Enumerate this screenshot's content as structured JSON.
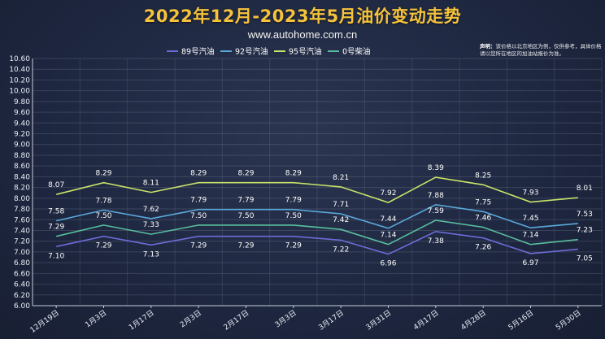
{
  "header": {
    "title": "2022年12月-2023年5月油价变动走势",
    "website": "www.autohome.com.cn"
  },
  "disclaimer": {
    "label": "声明：",
    "text": "该价格以北京地区为例，仅供参考，具体价格请以您所在地区的加油站报价为准。"
  },
  "colors": {
    "s89": "#6c6cd6",
    "s92": "#5aa9dc",
    "s95": "#c8e36a",
    "s0": "#58bf9e"
  },
  "chart_data": {
    "type": "line",
    "categories": [
      "12月19日",
      "1月3日",
      "1月17日",
      "2月3日",
      "2月17日",
      "3月3日",
      "3月17日",
      "3月31日",
      "4月17日",
      "4月28日",
      "5月16日",
      "5月30日"
    ],
    "ylim": [
      6.0,
      10.6
    ],
    "ystep": 0.2,
    "grid": true,
    "legend_position": "top",
    "series": [
      {
        "key": "s89",
        "name": "89号汽油",
        "values": [
          7.1,
          7.29,
          7.13,
          7.29,
          7.29,
          7.29,
          7.22,
          6.96,
          7.38,
          7.26,
          6.97,
          7.05
        ]
      },
      {
        "key": "s92",
        "name": "92号汽油",
        "values": [
          7.58,
          7.78,
          7.62,
          7.79,
          7.79,
          7.79,
          7.71,
          7.44,
          7.88,
          7.75,
          7.45,
          7.53
        ]
      },
      {
        "key": "s95",
        "name": "95号汽油",
        "values": [
          8.07,
          8.29,
          8.11,
          8.29,
          8.29,
          8.29,
          8.21,
          7.92,
          8.39,
          8.25,
          7.93,
          8.01
        ]
      },
      {
        "key": "s0",
        "name": "0号柴油",
        "values": [
          7.29,
          7.5,
          7.33,
          7.5,
          7.5,
          7.5,
          7.42,
          7.14,
          7.59,
          7.46,
          7.14,
          7.23
        ]
      }
    ]
  }
}
